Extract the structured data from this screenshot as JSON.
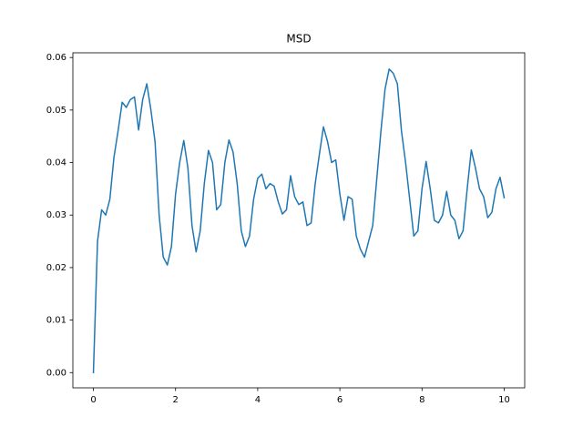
{
  "chart_data": {
    "type": "line",
    "title": "MSD",
    "x": [
      0,
      0.1,
      0.2,
      0.3,
      0.4,
      0.5,
      0.6,
      0.7,
      0.8,
      0.9,
      1,
      1.1,
      1.2,
      1.3,
      1.4,
      1.5,
      1.6,
      1.7,
      1.8,
      1.9,
      2,
      2.1,
      2.2,
      2.3,
      2.4,
      2.5,
      2.6,
      2.7,
      2.8,
      2.9,
      3,
      3.1,
      3.2,
      3.3,
      3.4,
      3.5,
      3.6,
      3.7,
      3.8,
      3.9,
      4,
      4.1,
      4.2,
      4.3,
      4.4,
      4.5,
      4.6,
      4.7,
      4.8,
      4.9,
      5,
      5.1,
      5.2,
      5.3,
      5.4,
      5.5,
      5.6,
      5.7,
      5.8,
      5.9,
      6,
      6.1,
      6.2,
      6.3,
      6.4,
      6.5,
      6.6,
      6.7,
      6.8,
      6.9,
      7,
      7.1,
      7.2,
      7.3,
      7.4,
      7.5,
      7.6,
      7.7,
      7.8,
      7.9,
      8,
      8.1,
      8.2,
      8.3,
      8.4,
      8.5,
      8.6,
      8.7,
      8.8,
      8.9,
      9,
      9.1,
      9.2,
      9.3,
      9.4,
      9.5,
      9.6,
      9.7,
      9.8,
      9.9,
      10
    ],
    "values": [
      0,
      0.025,
      0.031,
      0.03,
      0.033,
      0.041,
      0.046,
      0.0515,
      0.0505,
      0.052,
      0.0525,
      0.0462,
      0.052,
      0.055,
      0.05,
      0.044,
      0.03,
      0.022,
      0.0205,
      0.024,
      0.034,
      0.04,
      0.0442,
      0.039,
      0.028,
      0.023,
      0.027,
      0.036,
      0.0423,
      0.04,
      0.031,
      0.032,
      0.04,
      0.0443,
      0.042,
      0.036,
      0.027,
      0.024,
      0.026,
      0.033,
      0.037,
      0.0378,
      0.035,
      0.036,
      0.0355,
      0.0325,
      0.0302,
      0.031,
      0.0375,
      0.0335,
      0.032,
      0.0325,
      0.028,
      0.0285,
      0.036,
      0.0415,
      0.0468,
      0.044,
      0.04,
      0.0405,
      0.034,
      0.029,
      0.0335,
      0.033,
      0.026,
      0.0235,
      0.022,
      0.025,
      0.028,
      0.037,
      0.046,
      0.054,
      0.0578,
      0.057,
      0.055,
      0.046,
      0.04,
      0.033,
      0.026,
      0.027,
      0.035,
      0.0402,
      0.035,
      0.029,
      0.0285,
      0.03,
      0.0345,
      0.03,
      0.029,
      0.0255,
      0.027,
      0.035,
      0.0424,
      0.039,
      0.035,
      0.0335,
      0.0295,
      0.0305,
      0.035,
      0.0372,
      0.0333
    ],
    "color": "#1f77b4",
    "xlim": [
      -0.5,
      10.5
    ],
    "xticks": [
      0,
      2,
      4,
      6,
      8,
      10
    ],
    "ylim": [
      -0.0029,
      0.0609
    ],
    "yticks": [
      {
        "value": 0,
        "label": "0.00"
      },
      {
        "value": 0.01,
        "label": "0.01"
      },
      {
        "value": 0.02,
        "label": "0.02"
      },
      {
        "value": 0.03,
        "label": "0.03"
      },
      {
        "value": 0.04,
        "label": "0.04"
      },
      {
        "value": 0.05,
        "label": "0.05"
      },
      {
        "value": 0.06,
        "label": "0.06"
      }
    ],
    "grid": false
  }
}
